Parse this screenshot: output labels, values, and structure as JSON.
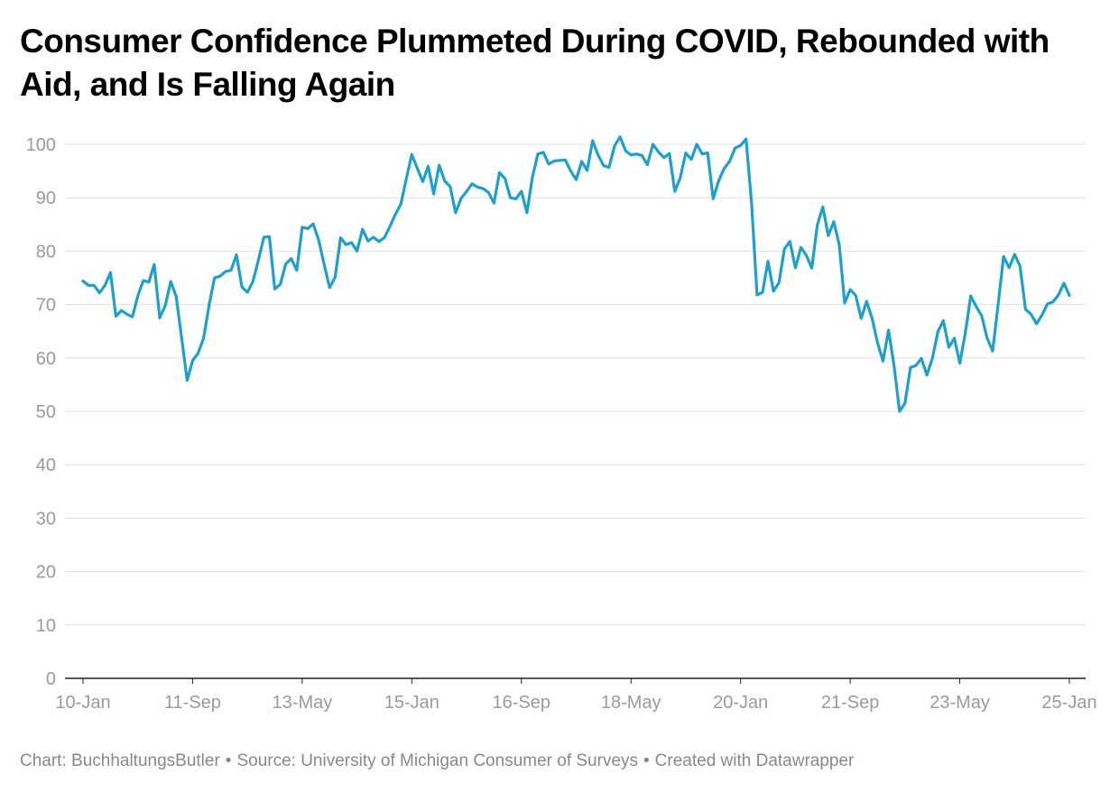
{
  "title": "Consumer Confidence Plummeted During COVID, Rebounded with Aid, and Is Falling Again",
  "footer": {
    "chart": "Chart: BuchhaltungsButler",
    "source": "Source: University of Michigan Consumer of Surveys",
    "tool": "Created with Datawrapper",
    "separator": "•"
  },
  "colors": {
    "line": "#1f9fcb",
    "grid": "#e0e0e0",
    "axis": "#222222",
    "tick_text": "#9a9a9a"
  },
  "chart_data": {
    "type": "line",
    "title": "Consumer Confidence Plummeted During COVID, Rebounded with Aid, and Is Falling Again",
    "xlabel": "",
    "ylabel": "",
    "ylim": [
      0,
      100
    ],
    "y_ticks": [
      0,
      10,
      20,
      30,
      40,
      50,
      60,
      70,
      80,
      90,
      100
    ],
    "x_ticks": [
      "10-Jan",
      "11-Sep",
      "13-May",
      "15-Jan",
      "16-Sep",
      "18-May",
      "20-Jan",
      "21-Sep",
      "23-May",
      "25-Jan"
    ],
    "x_tick_positions": [
      0,
      20,
      40,
      60,
      80,
      100,
      120,
      140,
      160,
      180
    ],
    "grid": true,
    "legend": "none",
    "series": [
      {
        "values": [
          74.4,
          73.6,
          73.6,
          72.2,
          73.6,
          76.0,
          67.8,
          68.9,
          68.2,
          67.7,
          71.6,
          74.5,
          74.2,
          77.5,
          67.5,
          69.8,
          74.3,
          71.5,
          63.7,
          55.8,
          59.5,
          60.9,
          63.7,
          69.9,
          75.0,
          75.3,
          76.2,
          76.4,
          79.3,
          73.3,
          72.3,
          74.3,
          78.3,
          82.6,
          82.7,
          72.9,
          73.8,
          77.6,
          78.6,
          76.4,
          84.5,
          84.2,
          85.1,
          82.1,
          77.5,
          73.2,
          75.1,
          82.5,
          81.2,
          81.6,
          80.0,
          84.1,
          81.9,
          82.6,
          81.8,
          82.5,
          84.6,
          86.9,
          88.8,
          93.6,
          98.1,
          95.5,
          93.0,
          95.9,
          90.7,
          96.1,
          93.1,
          92.1,
          87.2,
          89.9,
          91.2,
          92.6,
          92.0,
          91.7,
          91.0,
          89.0,
          94.7,
          93.6,
          90.0,
          89.8,
          91.2,
          87.2,
          93.8,
          98.2,
          98.5,
          96.3,
          96.9,
          97.0,
          97.1,
          95.0,
          93.4,
          96.8,
          95.1,
          100.7,
          98.0,
          96.0,
          95.7,
          99.7,
          101.4,
          98.8,
          98.0,
          98.2,
          97.9,
          96.2,
          100.0,
          98.6,
          97.5,
          98.3,
          91.2,
          93.8,
          98.4,
          97.2,
          100.0,
          98.2,
          98.4,
          89.8,
          93.2,
          95.5,
          96.8,
          99.3,
          99.8,
          101.0,
          89.1,
          71.8,
          72.3,
          78.1,
          72.5,
          74.1,
          80.4,
          81.8,
          76.9,
          80.7,
          79.2,
          76.8,
          84.9,
          88.3,
          82.9,
          85.5,
          81.2,
          70.3,
          72.8,
          71.7,
          67.4,
          70.6,
          67.4,
          62.8,
          59.4,
          65.2,
          58.6,
          50.0,
          51.5,
          58.2,
          58.6,
          59.9,
          56.8,
          59.9,
          64.9,
          67.0,
          62.0,
          63.7,
          59.0,
          64.6,
          71.6,
          69.6,
          67.9,
          63.7,
          61.3,
          70.1,
          79.0,
          76.9,
          79.4,
          77.2,
          69.1,
          68.2,
          66.4,
          68.0,
          70.1,
          70.5,
          71.8,
          74.0,
          71.7
        ]
      }
    ]
  }
}
